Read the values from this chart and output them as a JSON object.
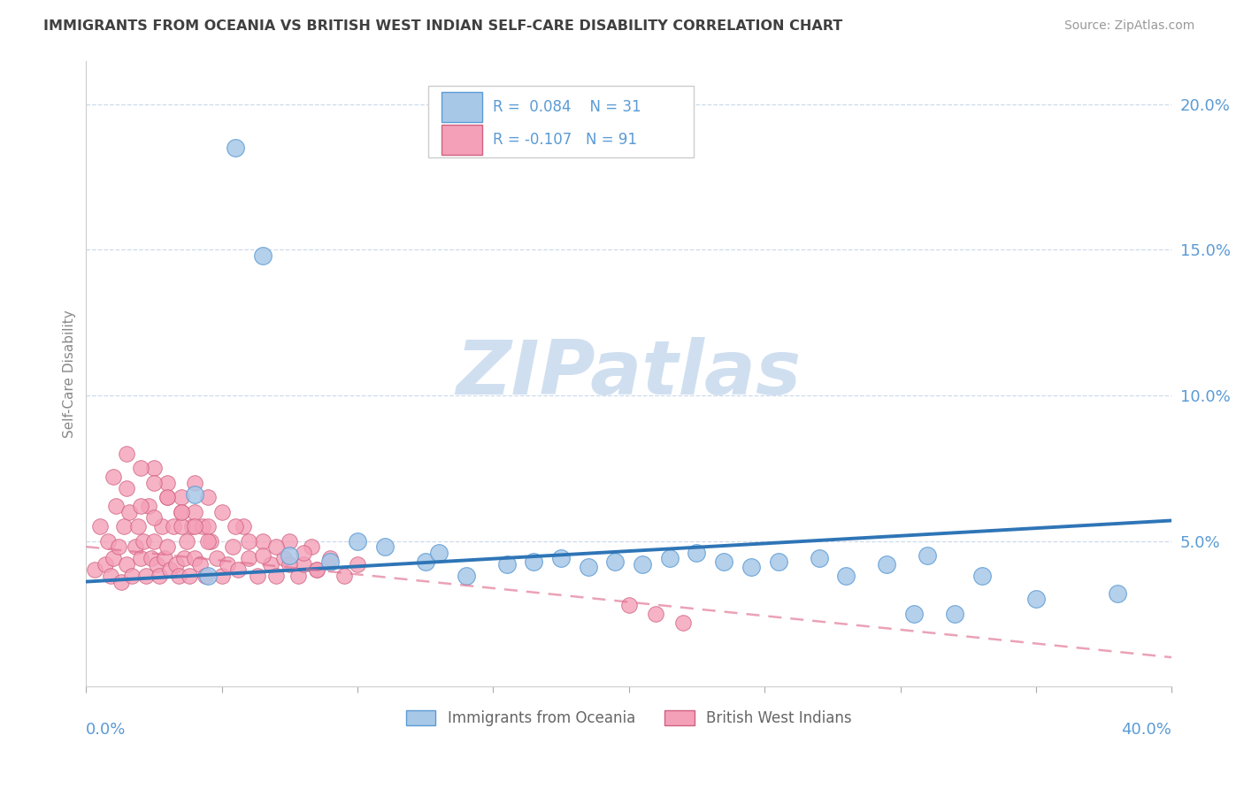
{
  "title": "IMMIGRANTS FROM OCEANIA VS BRITISH WEST INDIAN SELF-CARE DISABILITY CORRELATION CHART",
  "source": "Source: ZipAtlas.com",
  "ylabel": "Self-Care Disability",
  "r_oceania": 0.084,
  "n_oceania": 31,
  "r_bwi": -0.107,
  "n_bwi": 91,
  "tick_color": "#5b9bd5",
  "title_color": "#404040",
  "watermark": "ZIPatlas",
  "watermark_color": "#d0dff0",
  "legend_label_oceania": "Immigrants from Oceania",
  "legend_label_bwi": "British West Indians",
  "oceania_color": "#a8c8e8",
  "oceania_edge": "#5b9bd5",
  "bwi_color": "#f4a0b8",
  "bwi_edge": "#d06080",
  "trend_oceania_color": "#2e75b6",
  "trend_bwi_color": "#e07090",
  "xlim": [
    0.0,
    0.4
  ],
  "ylim": [
    0.0,
    0.215
  ],
  "yticks": [
    0.05,
    0.1,
    0.15,
    0.2
  ],
  "ytick_labels": [
    "5.0%",
    "10.0%",
    "15.0%",
    "20.0%"
  ],
  "oceania_x": [
    0.055,
    0.065,
    0.075,
    0.09,
    0.1,
    0.11,
    0.125,
    0.13,
    0.14,
    0.155,
    0.165,
    0.175,
    0.185,
    0.195,
    0.205,
    0.215,
    0.225,
    0.235,
    0.245,
    0.255,
    0.27,
    0.28,
    0.295,
    0.31,
    0.33,
    0.35,
    0.38,
    0.04,
    0.045,
    0.305,
    0.32
  ],
  "oceania_y": [
    0.185,
    0.148,
    0.045,
    0.043,
    0.05,
    0.048,
    0.043,
    0.046,
    0.038,
    0.042,
    0.043,
    0.044,
    0.041,
    0.043,
    0.042,
    0.044,
    0.046,
    0.043,
    0.041,
    0.043,
    0.044,
    0.038,
    0.042,
    0.045,
    0.038,
    0.03,
    0.032,
    0.066,
    0.038,
    0.025,
    0.025
  ],
  "bwi_x": [
    0.003,
    0.005,
    0.007,
    0.008,
    0.009,
    0.01,
    0.011,
    0.012,
    0.013,
    0.014,
    0.015,
    0.016,
    0.017,
    0.018,
    0.019,
    0.02,
    0.021,
    0.022,
    0.023,
    0.024,
    0.025,
    0.026,
    0.027,
    0.028,
    0.029,
    0.03,
    0.031,
    0.032,
    0.033,
    0.034,
    0.035,
    0.036,
    0.037,
    0.038,
    0.039,
    0.04,
    0.042,
    0.043,
    0.044,
    0.046,
    0.048,
    0.05,
    0.052,
    0.054,
    0.056,
    0.058,
    0.06,
    0.063,
    0.065,
    0.068,
    0.07,
    0.073,
    0.075,
    0.078,
    0.08,
    0.083,
    0.085,
    0.01,
    0.015,
    0.02,
    0.025,
    0.03,
    0.035,
    0.04,
    0.045,
    0.05,
    0.055,
    0.06,
    0.065,
    0.07,
    0.075,
    0.08,
    0.085,
    0.09,
    0.095,
    0.1,
    0.2,
    0.21,
    0.22,
    0.025,
    0.03,
    0.035,
    0.04,
    0.045,
    0.015,
    0.02,
    0.025,
    0.03,
    0.035,
    0.04,
    0.045
  ],
  "bwi_y": [
    0.04,
    0.055,
    0.042,
    0.05,
    0.038,
    0.044,
    0.062,
    0.048,
    0.036,
    0.055,
    0.042,
    0.06,
    0.038,
    0.048,
    0.055,
    0.044,
    0.05,
    0.038,
    0.062,
    0.044,
    0.05,
    0.042,
    0.038,
    0.055,
    0.044,
    0.048,
    0.04,
    0.055,
    0.042,
    0.038,
    0.06,
    0.044,
    0.05,
    0.038,
    0.055,
    0.044,
    0.042,
    0.055,
    0.038,
    0.05,
    0.044,
    0.038,
    0.042,
    0.048,
    0.04,
    0.055,
    0.044,
    0.038,
    0.05,
    0.042,
    0.038,
    0.044,
    0.05,
    0.038,
    0.042,
    0.048,
    0.04,
    0.072,
    0.068,
    0.062,
    0.058,
    0.065,
    0.055,
    0.07,
    0.065,
    0.06,
    0.055,
    0.05,
    0.045,
    0.048,
    0.042,
    0.046,
    0.04,
    0.044,
    0.038,
    0.042,
    0.028,
    0.025,
    0.022,
    0.075,
    0.07,
    0.065,
    0.06,
    0.055,
    0.08,
    0.075,
    0.07,
    0.065,
    0.06,
    0.055,
    0.05
  ],
  "trend_oceania_x0": 0.0,
  "trend_oceania_y0": 0.036,
  "trend_oceania_x1": 0.4,
  "trend_oceania_y1": 0.057,
  "trend_bwi_x0": 0.0,
  "trend_bwi_y0": 0.048,
  "trend_bwi_x1": 0.4,
  "trend_bwi_y1": 0.01
}
